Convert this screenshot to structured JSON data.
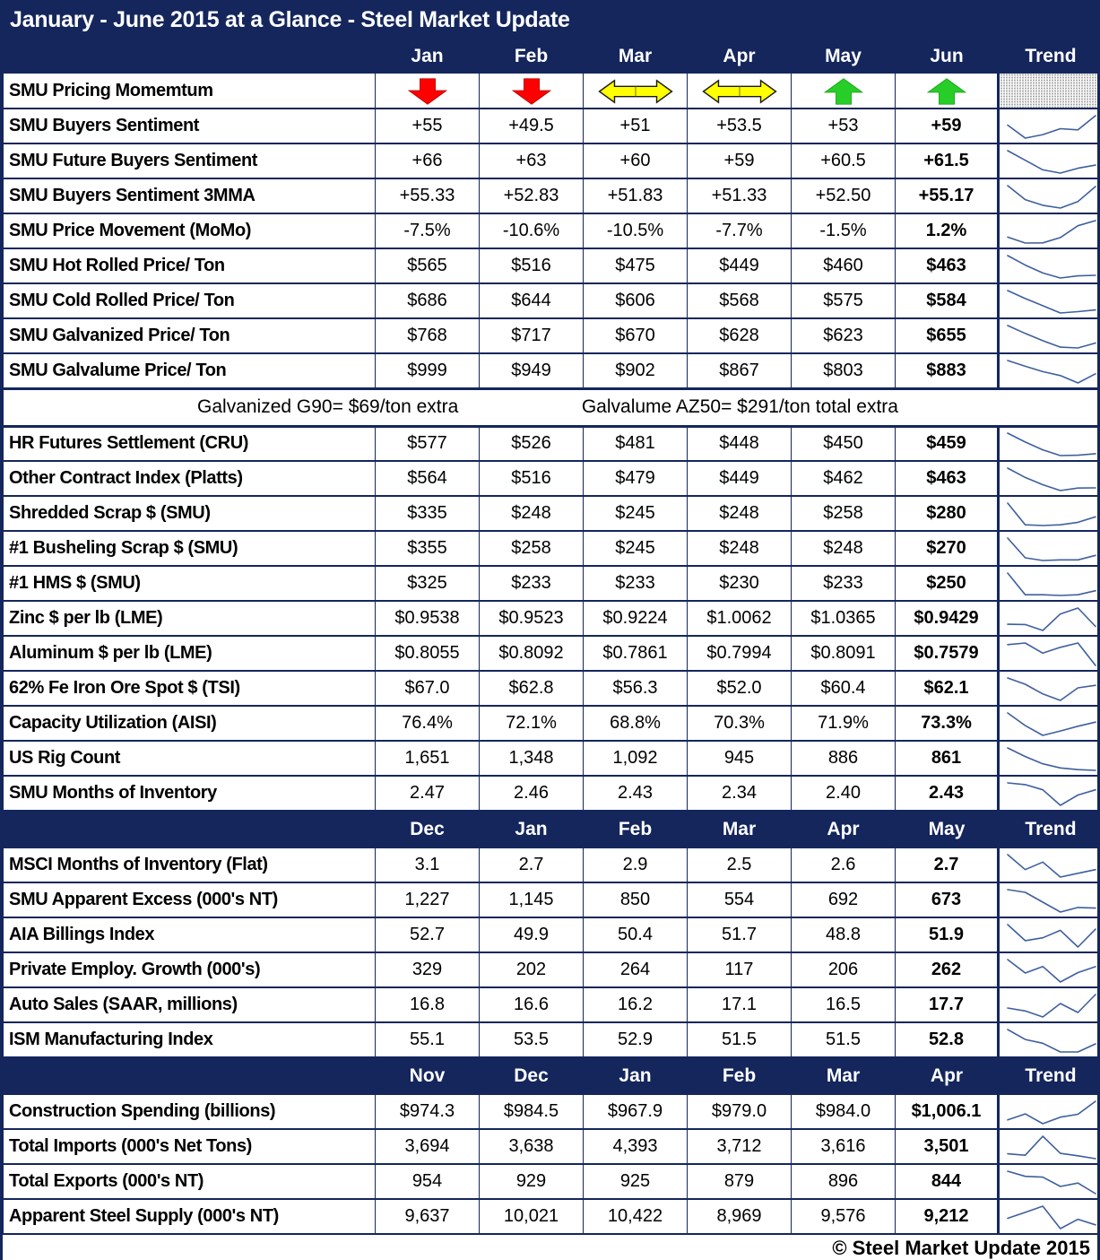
{
  "colors": {
    "navy": "#14265C",
    "sparkline": "#3E5F9E",
    "arrow_red": "#FE0000",
    "arrow_yellow": "#FFFF00",
    "arrow_green": "#28CE28",
    "hatch_gray": "#ABABAB"
  },
  "chart_data": {
    "type": "table",
    "title": "January - June 2015 at a Glance - Steel Market Update",
    "footer": "© Steel Market Update 2015",
    "trend_label": "Trend",
    "sections": [
      {
        "months": [
          "Jan",
          "Feb",
          "Mar",
          "Apr",
          "May",
          "Jun"
        ],
        "rows": [
          {
            "label": "SMU Pricing Momemtum",
            "arrows": [
              "down",
              "down",
              "leftright",
              "leftright",
              "up",
              "up"
            ]
          },
          {
            "label": "SMU Buyers Sentiment",
            "values": [
              "+55",
              "+49.5",
              "+51",
              "+53.5",
              "+53",
              "+59"
            ]
          },
          {
            "label": "SMU Future Buyers Sentiment",
            "values": [
              "+66",
              "+63",
              "+60",
              "+59",
              "+60.5",
              "+61.5"
            ]
          },
          {
            "label": "SMU Buyers Sentiment 3MMA",
            "values": [
              "+55.33",
              "+52.83",
              "+51.83",
              "+51.33",
              "+52.50",
              "+55.17"
            ]
          },
          {
            "label": "SMU Price Movement (MoMo)",
            "values": [
              "-7.5%",
              "-10.6%",
              "-10.5%",
              "-7.7%",
              "-1.5%",
              "1.2%"
            ]
          },
          {
            "label": "SMU Hot Rolled Price/ Ton",
            "values": [
              "$565",
              "$516",
              "$475",
              "$449",
              "$460",
              "$463"
            ]
          },
          {
            "label": "SMU Cold Rolled Price/ Ton",
            "values": [
              "$686",
              "$644",
              "$606",
              "$568",
              "$575",
              "$584"
            ]
          },
          {
            "label": "SMU Galvanized Price/ Ton",
            "values": [
              "$768",
              "$717",
              "$670",
              "$628",
              "$623",
              "$655"
            ]
          },
          {
            "label": "SMU Galvalume Price/ Ton",
            "values": [
              "$999",
              "$949",
              "$902",
              "$867",
              "$803",
              "$883"
            ]
          },
          {
            "note": [
              "Galvanized G90= $69/ton extra",
              "Galvalume AZ50= $291/ton total extra"
            ]
          },
          {
            "label": "HR Futures Settlement (CRU)",
            "values": [
              "$577",
              "$526",
              "$481",
              "$448",
              "$450",
              "$459"
            ]
          },
          {
            "label": "Other Contract Index (Platts)",
            "values": [
              "$564",
              "$516",
              "$479",
              "$449",
              "$462",
              "$463"
            ]
          },
          {
            "label": "Shredded Scrap $ (SMU)",
            "values": [
              "$335",
              "$248",
              "$245",
              "$248",
              "$258",
              "$280"
            ]
          },
          {
            "label": "#1 Busheling Scrap $ (SMU)",
            "values": [
              "$355",
              "$258",
              "$245",
              "$248",
              "$248",
              "$270"
            ]
          },
          {
            "label": "#1 HMS $ (SMU)",
            "values": [
              "$325",
              "$233",
              "$233",
              "$230",
              "$233",
              "$250"
            ]
          },
          {
            "label": "Zinc $ per lb (LME)",
            "values": [
              "$0.9538",
              "$0.9523",
              "$0.9224",
              "$1.0062",
              "$1.0365",
              "$0.9429"
            ]
          },
          {
            "label": "Aluminum $ per lb (LME)",
            "values": [
              "$0.8055",
              "$0.8092",
              "$0.7861",
              "$0.7994",
              "$0.8091",
              "$0.7579"
            ]
          },
          {
            "label": "62% Fe Iron Ore Spot $ (TSI)",
            "values": [
              "$67.0",
              "$62.8",
              "$56.3",
              "$52.0",
              "$60.4",
              "$62.1"
            ]
          },
          {
            "label": "Capacity Utilization (AISI)",
            "values": [
              "76.4%",
              "72.1%",
              "68.8%",
              "70.3%",
              "71.9%",
              "73.3%"
            ]
          },
          {
            "label": "US Rig Count",
            "values": [
              "1,651",
              "1,348",
              "1,092",
              "945",
              "886",
              "861"
            ]
          },
          {
            "label": "SMU Months of Inventory",
            "values": [
              "2.47",
              "2.46",
              "2.43",
              "2.34",
              "2.40",
              "2.43"
            ]
          }
        ]
      },
      {
        "months": [
          "Dec",
          "Jan",
          "Feb",
          "Mar",
          "Apr",
          "May"
        ],
        "rows": [
          {
            "label": "MSCI Months of Inventory (Flat)",
            "values": [
              "3.1",
              "2.7",
              "2.9",
              "2.5",
              "2.6",
              "2.7"
            ]
          },
          {
            "label": "SMU Apparent Excess (000's NT)",
            "values": [
              "1,227",
              "1,145",
              "850",
              "554",
              "692",
              "673"
            ]
          },
          {
            "label": "AIA Billings Index",
            "values": [
              "52.7",
              "49.9",
              "50.4",
              "51.7",
              "48.8",
              "51.9"
            ]
          },
          {
            "label": "Private Employ. Growth (000's)",
            "values": [
              "329",
              "202",
              "264",
              "117",
              "206",
              "262"
            ]
          },
          {
            "label": "Auto Sales (SAAR, millions)",
            "values": [
              "16.8",
              "16.6",
              "16.2",
              "17.1",
              "16.5",
              "17.7"
            ]
          },
          {
            "label": "ISM Manufacturing Index",
            "values": [
              "55.1",
              "53.5",
              "52.9",
              "51.5",
              "51.5",
              "52.8"
            ]
          }
        ]
      },
      {
        "months": [
          "Nov",
          "Dec",
          "Jan",
          "Feb",
          "Mar",
          "Apr"
        ],
        "rows": [
          {
            "label": "Construction Spending (billions)",
            "values": [
              "$974.3",
              "$984.5",
              "$967.9",
              "$979.0",
              "$984.0",
              "$1,006.1"
            ]
          },
          {
            "label": "Total Imports (000's Net Tons)",
            "values": [
              "3,694",
              "3,638",
              "4,393",
              "3,712",
              "3,616",
              "3,501"
            ]
          },
          {
            "label": "Total Exports (000's NT)",
            "values": [
              "954",
              "929",
              "925",
              "879",
              "896",
              "844"
            ]
          },
          {
            "label": "Apparent Steel Supply (000's NT)",
            "values": [
              "9,637",
              "10,021",
              "10,422",
              "8,969",
              "9,576",
              "9,212"
            ]
          }
        ]
      }
    ]
  }
}
